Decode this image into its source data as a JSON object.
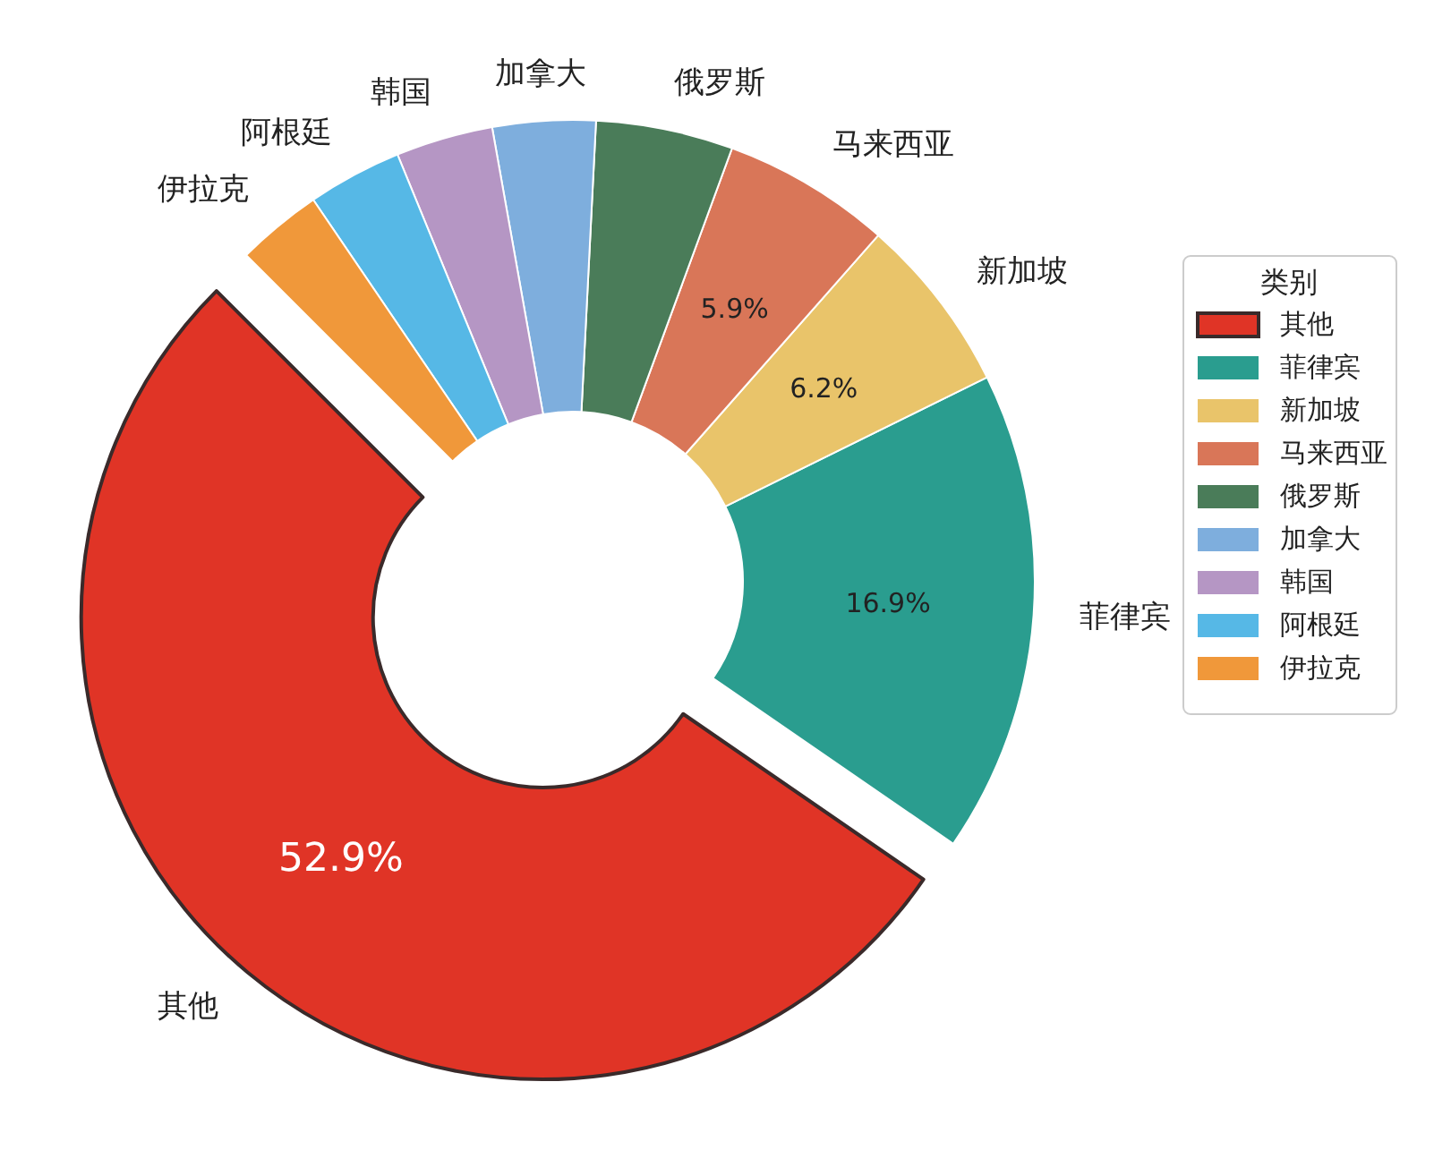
{
  "chart_data": {
    "type": "donut",
    "legend_title": "类别",
    "legend": "right",
    "categories": [
      "其他",
      "菲律宾",
      "新加坡",
      "马来西亚",
      "俄罗斯",
      "加拿大",
      "韩国",
      "阿根廷",
      "伊拉克"
    ],
    "values": [
      52.9,
      16.9,
      6.2,
      5.9,
      4.8,
      3.6,
      3.4,
      3.3,
      3.0
    ],
    "value_labels": [
      "52.9%",
      "16.9%",
      "6.2%",
      "5.9%",
      null,
      null,
      null,
      null,
      null
    ],
    "colors": [
      "#e03426",
      "#2a9d8f",
      "#e9c46a",
      "#d97658",
      "#4a7c59",
      "#7eaedd",
      "#b596c4",
      "#56b8e6",
      "#f0983a"
    ]
  }
}
